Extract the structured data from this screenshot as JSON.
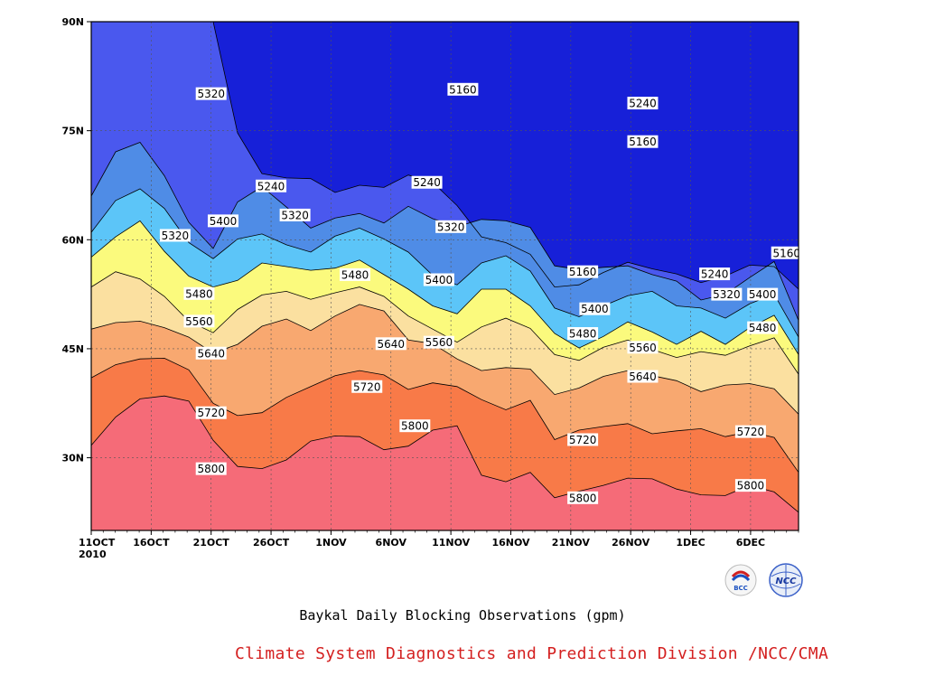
{
  "chart_data": {
    "type": "contour-filled",
    "title": "Baykal Daily Blocking Observations (gpm)",
    "x_ticks": [
      "11OCT\n2010",
      "16OCT",
      "21OCT",
      "26OCT",
      "1NOV",
      "6NOV",
      "11NOV",
      "16NOV",
      "21NOV",
      "26NOV",
      "1DEC",
      "6DEC"
    ],
    "x_range": [
      "2010-10-11",
      "2010-12-09"
    ],
    "y_ticks": [
      "30N",
      "45N",
      "60N",
      "75N",
      "90N"
    ],
    "y_range_deg": [
      20,
      90
    ],
    "grid": true,
    "contour_levels": [
      5160,
      5240,
      5320,
      5400,
      5480,
      5560,
      5640,
      5720,
      5800
    ],
    "fill_colors": [
      "#0d1166",
      "#1720d8",
      "#4a58ee",
      "#4f8ce6",
      "#5cc5f8",
      "#fbfa7d",
      "#fbe0a0",
      "#f8a870",
      "#f87a48",
      "#f56b78"
    ],
    "contours": [
      {
        "level": 5800,
        "lat": [
          31.7,
          35.6,
          38.1,
          38.5,
          37.8,
          32.4,
          28.8,
          28.5,
          29.7,
          32.3,
          33.0,
          32.9,
          31.1,
          31.6,
          33.8,
          34.4,
          27.6,
          26.7,
          28.0,
          24.5,
          25.4,
          26.2,
          27.2,
          27.1,
          25.7,
          24.9,
          24.8,
          26.2,
          25.3,
          22.5
        ],
        "labels": [
          {
            "text": "5800",
            "date": "2010-10-21",
            "lat": 28.5
          },
          {
            "text": "5800",
            "date": "2010-11-07",
            "lat": 34.4
          },
          {
            "text": "5800",
            "date": "2010-11-21",
            "lat": 24.5
          },
          {
            "text": "5800",
            "date": "2010-12-05",
            "lat": 26.2
          }
        ]
      },
      {
        "level": 5720,
        "lat": [
          41.0,
          42.8,
          43.6,
          43.7,
          42.1,
          37.5,
          35.8,
          36.2,
          38.3,
          39.8,
          41.3,
          42.0,
          41.4,
          39.4,
          40.3,
          39.8,
          38.0,
          36.6,
          37.9,
          32.5,
          33.8,
          34.3,
          34.7,
          33.3,
          33.7,
          34.0,
          32.9,
          33.6,
          32.8,
          28.0
        ],
        "labels": [
          {
            "text": "5720",
            "date": "2010-10-21",
            "lat": 36.2
          },
          {
            "text": "5720",
            "date": "2010-11-03",
            "lat": 39.8
          },
          {
            "text": "5720",
            "date": "2010-11-21",
            "lat": 32.5
          },
          {
            "text": "5720",
            "date": "2010-12-05",
            "lat": 33.6
          }
        ]
      },
      {
        "level": 5640,
        "lat": [
          47.7,
          48.6,
          48.8,
          47.9,
          46.6,
          44.4,
          45.6,
          48.1,
          49.1,
          47.5,
          49.5,
          51.1,
          50.2,
          46.2,
          45.7,
          43.6,
          42.0,
          42.4,
          42.2,
          38.7,
          39.6,
          41.2,
          42.0,
          41.3,
          40.6,
          39.1,
          40.0,
          40.2,
          39.5,
          36.0
        ],
        "labels": [
          {
            "text": "5640",
            "date": "2010-10-21",
            "lat": 44.4
          },
          {
            "text": "5640",
            "date": "2010-11-05",
            "lat": 45.7
          },
          {
            "text": "5640",
            "date": "2010-11-26",
            "lat": 41.2
          }
        ]
      },
      {
        "level": 5560,
        "lat": [
          53.5,
          55.6,
          54.6,
          52.2,
          48.8,
          47.2,
          50.4,
          52.4,
          52.9,
          51.8,
          52.7,
          53.5,
          52.2,
          49.5,
          47.7,
          45.9,
          48.0,
          49.2,
          47.8,
          44.2,
          43.4,
          45.2,
          46.2,
          44.9,
          43.8,
          44.6,
          44.1,
          45.4,
          46.5,
          41.5
        ],
        "labels": [
          {
            "text": "5560",
            "date": "2010-10-20",
            "lat": 48.8
          },
          {
            "text": "5560",
            "date": "2010-11-09",
            "lat": 45.9
          },
          {
            "text": "5560",
            "date": "2010-11-26",
            "lat": 45.2
          }
        ]
      },
      {
        "level": 5480,
        "lat": [
          57.6,
          60.4,
          62.6,
          58.4,
          55.0,
          53.5,
          54.4,
          56.8,
          56.3,
          55.8,
          56.1,
          57.2,
          55.2,
          53.2,
          50.9,
          49.8,
          53.2,
          53.2,
          50.9,
          47.1,
          45.1,
          46.7,
          48.7,
          47.3,
          45.6,
          47.4,
          45.6,
          47.9,
          49.6,
          44.2
        ],
        "labels": [
          {
            "text": "5480",
            "date": "2010-10-20",
            "lat": 52.6
          },
          {
            "text": "5480",
            "date": "2010-11-02",
            "lat": 55.2
          },
          {
            "text": "5480",
            "date": "2010-11-21",
            "lat": 47.1
          },
          {
            "text": "5480",
            "date": "2010-12-06",
            "lat": 47.9
          }
        ]
      },
      {
        "level": 5400,
        "lat": [
          61.0,
          65.4,
          67.0,
          64.3,
          59.6,
          57.4,
          60.1,
          60.8,
          59.3,
          58.3,
          60.5,
          61.6,
          60.1,
          58.3,
          55.1,
          53.8,
          56.8,
          57.8,
          55.7,
          50.6,
          49.4,
          50.9,
          52.3,
          52.9,
          50.9,
          50.6,
          49.2,
          51.2,
          52.5,
          46.6
        ],
        "labels": [
          {
            "text": "5400",
            "date": "2010-10-22",
            "lat": 62.6
          },
          {
            "text": "5400",
            "date": "2010-11-09",
            "lat": 54.5
          },
          {
            "text": "5400",
            "date": "2010-11-22",
            "lat": 50.5
          },
          {
            "text": "5400",
            "date": "2010-12-06",
            "lat": 52.5
          }
        ]
      },
      {
        "level": 5320,
        "lat": [
          66.0,
          72.1,
          73.4,
          68.8,
          62.4,
          58.8,
          65.2,
          67.3,
          64.5,
          61.6,
          63.0,
          63.6,
          62.3,
          64.6,
          62.9,
          61.8,
          62.8,
          62.6,
          61.7,
          56.4,
          55.9,
          56.2,
          56.4,
          55.2,
          54.3,
          51.7,
          52.5,
          54.8,
          57.0,
          48.9
        ],
        "labels": [
          {
            "text": "5320",
            "date": "2010-10-18",
            "lat": 60.6
          },
          {
            "text": "5320",
            "date": "2010-10-28",
            "lat": 63.4
          },
          {
            "text": "5320",
            "date": "2010-11-10",
            "lat": 61.8
          },
          {
            "text": "5320",
            "date": "2010-12-03",
            "lat": 52.5
          }
        ]
      },
      {
        "level": 5240,
        "lat": [
          90,
          90,
          90,
          90,
          90,
          90,
          74.7,
          69.1,
          68.5,
          68.4,
          66.5,
          67.5,
          67.2,
          68.9,
          67.9,
          64.7,
          60.4,
          59.6,
          58.0,
          53.5,
          53.8,
          55.5,
          56.9,
          56.0,
          55.3,
          54.1,
          55.0,
          56.5,
          56.3,
          53.2
        ],
        "labels": [
          {
            "text": "5240",
            "date": "2010-10-26",
            "lat": 67.4
          },
          {
            "text": "5240",
            "date": "2010-11-08",
            "lat": 67.9
          },
          {
            "text": "5240",
            "date": "2010-12-02",
            "lat": 55.3
          }
        ]
      },
      {
        "level": 5160,
        "lat": [
          90,
          90,
          90,
          90,
          90,
          90,
          90,
          90,
          90,
          90,
          90,
          90,
          90,
          90,
          90,
          90,
          90,
          90,
          90,
          90,
          90,
          90,
          90,
          90,
          90,
          90,
          90,
          90,
          90,
          90
        ],
        "labels": [
          {
            "text": "5160",
            "date": "2010-11-11",
            "lat": 80.7
          },
          {
            "text": "5160",
            "date": "2010-11-21",
            "lat": 55.6
          },
          {
            "text": "5160",
            "date": "2010-11-26",
            "lat": 73.5
          },
          {
            "text": "5160",
            "date": "2010-12-08",
            "lat": 58.2
          }
        ]
      }
    ],
    "extra_labels": [
      {
        "text": "5320",
        "date": "2010-10-21",
        "lat": 80.1
      },
      {
        "text": "5240",
        "date": "2010-11-26",
        "lat": 78.8
      }
    ]
  },
  "footer": {
    "title": "Baykal Daily Blocking Observations (gpm)",
    "credit": "Climate System Diagnostics and Prediction Division /NCC/CMA",
    "logo_left_text": "BCC",
    "logo_right_text": "NCC"
  }
}
